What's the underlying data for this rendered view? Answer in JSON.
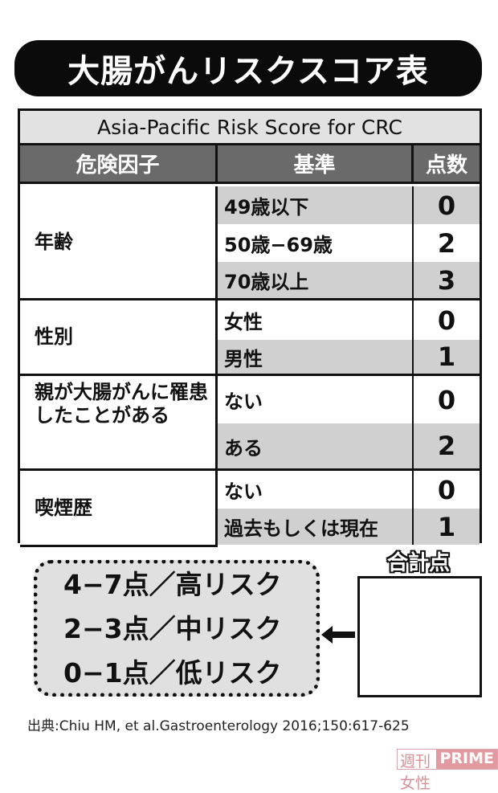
{
  "title": "大腸がんリスクスコア表",
  "table": {
    "subtitle": "Asia-Pacific Risk Score for CRC",
    "headers": {
      "factor": "危険因子",
      "criteria": "基準",
      "points": "点数"
    },
    "groups": [
      {
        "factor": "年齢",
        "rows": [
          {
            "criteria": "49歳以下",
            "points": "0",
            "shaded": true
          },
          {
            "criteria": "50歳−69歳",
            "points": "2",
            "shaded": false
          },
          {
            "criteria": "70歳以上",
            "points": "3",
            "shaded": true
          }
        ]
      },
      {
        "factor": "性別",
        "rows": [
          {
            "criteria": "女性",
            "points": "0",
            "shaded": false
          },
          {
            "criteria": "男性",
            "points": "1",
            "shaded": true
          }
        ]
      },
      {
        "factor": "親が大腸がんに罹患したことがある",
        "rows": [
          {
            "criteria": "ない",
            "points": "0",
            "shaded": false
          },
          {
            "criteria": "ある",
            "points": "2",
            "shaded": true
          }
        ]
      },
      {
        "factor": "喫煙歴",
        "rows": [
          {
            "criteria": "ない",
            "points": "0",
            "shaded": false
          },
          {
            "criteria": "過去もしくは現在",
            "points": "1",
            "shaded": true
          }
        ]
      }
    ]
  },
  "legend": [
    "4−7点／高リスク",
    "2−3点／中リスク",
    "0−1点／低リスク"
  ],
  "total": {
    "label": "合計点",
    "value": ""
  },
  "source": "出典:Chiu HM, et al.Gastroenterology 2016;150:617-625",
  "watermark": {
    "part1": "週刊女性",
    "part2": "PRIME"
  },
  "colors": {
    "header_bg": "#6a6a6a",
    "shade": "#d0d0d0",
    "subtitle_bg": "#e2e2e2",
    "title_bg": "#0b0b0b"
  }
}
